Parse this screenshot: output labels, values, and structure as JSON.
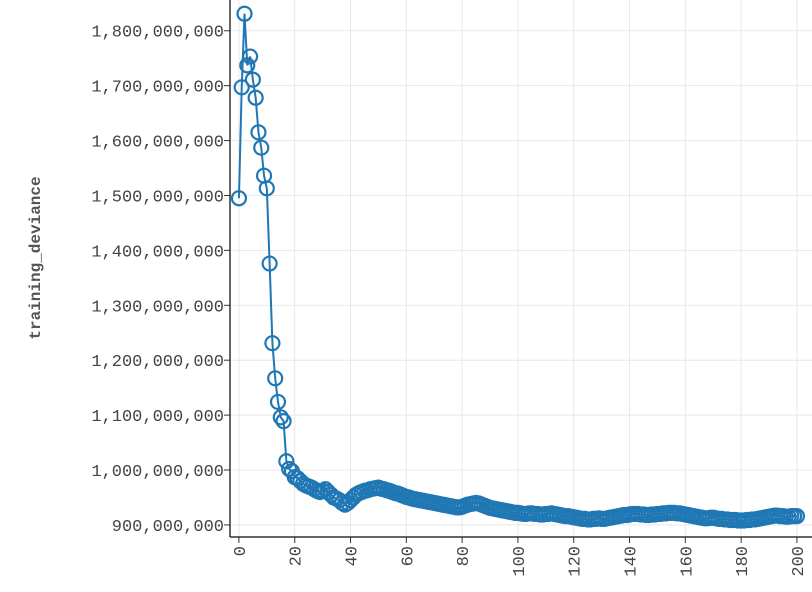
{
  "chart_data": {
    "type": "line",
    "y_label": "training_deviance",
    "xlim": [
      -3.2,
      201.1
    ],
    "ylim": [
      878000000,
      1856000000
    ],
    "xticks": [
      0,
      20,
      40,
      60,
      80,
      100,
      120,
      140,
      160,
      180,
      200
    ],
    "yticks": [
      {
        "value": 900000000,
        "label": "900,000,000"
      },
      {
        "value": 1000000000,
        "label": "1,000,000,000"
      },
      {
        "value": 1100000000,
        "label": "1,100,000,000"
      },
      {
        "value": 1200000000,
        "label": "1,200,000,000"
      },
      {
        "value": 1300000000,
        "label": "1,300,000,000"
      },
      {
        "value": 1400000000,
        "label": "1,400,000,000"
      },
      {
        "value": 1500000000,
        "label": "1,500,000,000"
      },
      {
        "value": 1600000000,
        "label": "1,600,000,000"
      },
      {
        "value": 1700000000,
        "label": "1,700,000,000"
      },
      {
        "value": 1800000000,
        "label": "1,800,000,000"
      }
    ],
    "grid": true,
    "x": [
      0,
      1,
      2,
      3,
      4,
      5,
      6,
      7,
      8,
      9,
      10,
      11,
      12,
      13,
      14,
      15,
      16,
      17,
      18,
      19,
      20,
      21,
      22,
      23,
      24,
      25,
      26,
      27,
      28,
      29,
      30,
      31,
      32,
      33,
      34,
      35,
      36,
      37,
      38,
      39,
      40,
      41,
      42,
      43,
      44,
      45,
      46,
      47,
      48,
      49,
      50,
      51,
      52,
      53,
      54,
      55,
      56,
      57,
      58,
      59,
      60,
      61,
      62,
      63,
      64,
      65,
      66,
      67,
      68,
      69,
      70,
      71,
      72,
      73,
      74,
      75,
      76,
      77,
      78,
      79,
      80,
      81,
      82,
      83,
      84,
      85,
      86,
      87,
      88,
      89,
      90,
      91,
      92,
      93,
      94,
      95,
      96,
      97,
      98,
      99,
      100,
      101,
      102,
      103,
      104,
      105,
      106,
      107,
      108,
      109,
      110,
      111,
      112,
      113,
      114,
      115,
      116,
      117,
      118,
      119,
      120,
      121,
      122,
      123,
      124,
      125,
      126,
      127,
      128,
      129,
      130,
      131,
      132,
      133,
      134,
      135,
      136,
      137,
      138,
      139,
      140,
      141,
      142,
      143,
      144,
      145,
      146,
      147,
      148,
      149,
      150,
      151,
      152,
      153,
      154,
      155,
      156,
      157,
      158,
      159,
      160,
      161,
      162,
      163,
      164,
      165,
      166,
      167,
      168,
      169,
      170,
      171,
      172,
      173,
      174,
      175,
      176,
      177,
      178,
      179,
      180,
      181,
      182,
      183,
      184,
      185,
      186,
      187,
      188,
      189,
      190,
      191,
      192,
      193,
      194,
      195,
      196,
      197,
      198,
      199,
      200
    ],
    "series": [
      {
        "color": "#1f77b4",
        "values": [
          1495000000,
          1697000000,
          1831000000,
          1737000000,
          1753000000,
          1711000000,
          1678000000,
          1615000000,
          1587000000,
          1536000000,
          1513000000,
          1376000000,
          1231000000,
          1167000000,
          1124000000,
          1096000000,
          1089000000,
          1016000000,
          1002000000,
          998000000,
          987000000,
          985000000,
          980000000,
          975000000,
          972000000,
          970000000,
          968000000,
          965000000,
          962000000,
          960000000,
          962000000,
          965000000,
          960000000,
          955000000,
          950000000,
          948000000,
          945000000,
          940000000,
          937000000,
          940000000,
          945000000,
          950000000,
          955000000,
          958000000,
          960000000,
          962000000,
          963000000,
          965000000,
          966000000,
          967000000,
          968000000,
          966000000,
          965000000,
          963000000,
          962000000,
          960000000,
          958000000,
          957000000,
          955000000,
          953000000,
          951000000,
          950000000,
          948000000,
          947000000,
          946000000,
          945000000,
          944000000,
          943000000,
          942000000,
          941000000,
          940000000,
          939000000,
          938000000,
          937000000,
          936000000,
          935000000,
          934000000,
          933000000,
          932000000,
          932000000,
          933000000,
          935000000,
          937000000,
          938000000,
          939000000,
          940000000,
          939000000,
          937000000,
          935000000,
          933000000,
          931000000,
          930000000,
          929000000,
          928000000,
          927000000,
          926000000,
          925000000,
          924000000,
          923000000,
          922000000,
          922000000,
          921000000,
          920000000,
          920000000,
          921000000,
          921000000,
          920000000,
          920000000,
          919000000,
          919000000,
          920000000,
          920000000,
          921000000,
          920000000,
          919000000,
          918000000,
          917000000,
          916000000,
          916000000,
          915000000,
          914000000,
          913000000,
          912000000,
          911000000,
          911000000,
          910000000,
          910000000,
          911000000,
          911000000,
          912000000,
          911000000,
          911000000,
          912000000,
          913000000,
          914000000,
          915000000,
          916000000,
          917000000,
          918000000,
          918000000,
          919000000,
          920000000,
          920000000,
          920000000,
          919000000,
          919000000,
          918000000,
          918000000,
          919000000,
          919000000,
          920000000,
          920000000,
          921000000,
          921000000,
          922000000,
          922000000,
          922000000,
          921000000,
          921000000,
          920000000,
          919000000,
          918000000,
          917000000,
          916000000,
          915000000,
          914000000,
          913000000,
          912000000,
          912000000,
          913000000,
          913000000,
          912000000,
          911000000,
          911000000,
          910000000,
          910000000,
          909000000,
          909000000,
          909000000,
          908000000,
          908000000,
          908000000,
          909000000,
          909000000,
          910000000,
          910000000,
          911000000,
          912000000,
          913000000,
          914000000,
          915000000,
          916000000,
          917000000,
          917000000,
          916000000,
          916000000,
          915000000,
          915000000,
          916000000,
          916000000,
          916000000
        ]
      }
    ]
  }
}
